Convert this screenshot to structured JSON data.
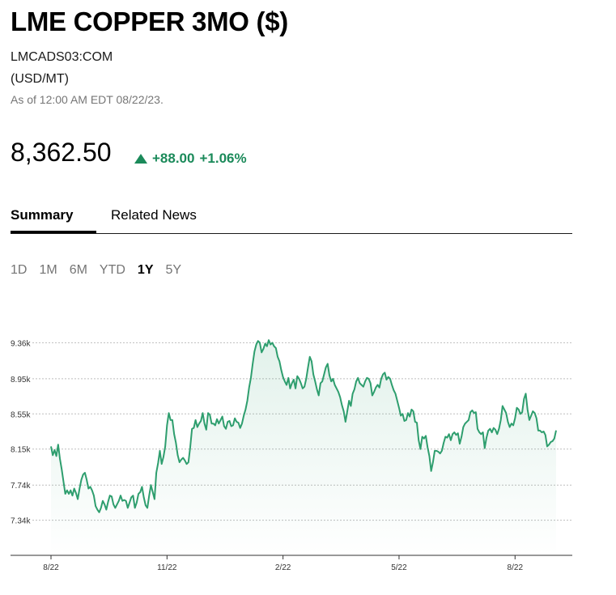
{
  "header": {
    "title": "LME COPPER 3MO ($)",
    "ticker": "LMCADS03:COM",
    "unit": "(USD/MT)",
    "as_of": "As of 12:00 AM EDT 08/22/23."
  },
  "quote": {
    "price": "8,362.50",
    "change": "+88.00",
    "change_pct": "+1.06%",
    "direction_icon": "triangle-up-icon",
    "positive_color": "#1b8a5a"
  },
  "tabs": [
    {
      "label": "Summary",
      "active": true
    },
    {
      "label": "Related News",
      "active": false
    }
  ],
  "ranges": [
    {
      "label": "1D",
      "active": false
    },
    {
      "label": "1M",
      "active": false
    },
    {
      "label": "6M",
      "active": false
    },
    {
      "label": "YTD",
      "active": false
    },
    {
      "label": "1Y",
      "active": true
    },
    {
      "label": "5Y",
      "active": false
    }
  ],
  "chart_data": {
    "type": "area",
    "title": "",
    "xlabel": "",
    "ylabel": "",
    "line_color": "#2e9e6e",
    "grid": true,
    "ylim": [
      6940,
      9760
    ],
    "y_ticks": [
      {
        "value": 9360,
        "label": "9.36k"
      },
      {
        "value": 8950,
        "label": "8.95k"
      },
      {
        "value": 8550,
        "label": "8.55k"
      },
      {
        "value": 8150,
        "label": "8.15k"
      },
      {
        "value": 7740,
        "label": "7.74k"
      },
      {
        "value": 7340,
        "label": "7.34k"
      }
    ],
    "x_ticks": [
      {
        "index": 0,
        "label": "8/22"
      },
      {
        "index": 65,
        "label": "11/22"
      },
      {
        "index": 130,
        "label": "2/22"
      },
      {
        "index": 195,
        "label": "5/22"
      },
      {
        "index": 260,
        "label": "8/22"
      }
    ],
    "series": [
      {
        "values": [
          8180,
          8080,
          8140,
          8070,
          8200,
          8040,
          7920,
          7780,
          7640,
          7680,
          7640,
          7680,
          7620,
          7700,
          7650,
          7580,
          7700,
          7800,
          7860,
          7880,
          7800,
          7700,
          7720,
          7680,
          7620,
          7500,
          7460,
          7430,
          7480,
          7560,
          7520,
          7460,
          7550,
          7620,
          7610,
          7520,
          7480,
          7520,
          7560,
          7620,
          7560,
          7570,
          7560,
          7480,
          7540,
          7600,
          7620,
          7480,
          7540,
          7640,
          7660,
          7720,
          7600,
          7510,
          7480,
          7620,
          7740,
          7660,
          7580,
          7880,
          7990,
          8130,
          7980,
          8060,
          8180,
          8420,
          8560,
          8480,
          8480,
          8320,
          8220,
          8080,
          8000,
          8030,
          8050,
          8020,
          7980,
          8000,
          8170,
          8380,
          8390,
          8480,
          8400,
          8440,
          8470,
          8560,
          8440,
          8370,
          8560,
          8540,
          8440,
          8440,
          8420,
          8490,
          8440,
          8480,
          8520,
          8410,
          8380,
          8460,
          8470,
          8410,
          8420,
          8500,
          8460,
          8450,
          8390,
          8440,
          8530,
          8600,
          8700,
          8850,
          8960,
          9120,
          9260,
          9340,
          9380,
          9360,
          9250,
          9290,
          9350,
          9320,
          9390,
          9340,
          9360,
          9320,
          9300,
          9200,
          9150,
          9050,
          8970,
          8920,
          8880,
          8960,
          8840,
          8900,
          8940,
          8840,
          8980,
          8950,
          8900,
          8840,
          8860,
          8950,
          9080,
          9200,
          9150,
          9000,
          8920,
          8830,
          8760,
          8900,
          8920,
          9000,
          9080,
          9120,
          8990,
          8920,
          8950,
          8880,
          8840,
          8800,
          8740,
          8650,
          8580,
          8460,
          8580,
          8700,
          8640,
          8780,
          8830,
          8920,
          8960,
          8900,
          8880,
          8860,
          8920,
          8960,
          8950,
          8900,
          8760,
          8800,
          8850,
          8880,
          8850,
          8950,
          9000,
          9020,
          8940,
          8970,
          8950,
          8880,
          8820,
          8780,
          8700,
          8620,
          8530,
          8550,
          8470,
          8480,
          8560,
          8520,
          8600,
          8580,
          8460,
          8450,
          8250,
          8150,
          8290,
          8270,
          8300,
          8170,
          8070,
          7900,
          8000,
          8130,
          8130,
          8120,
          8100,
          8130,
          8220,
          8290,
          8280,
          8320,
          8250,
          8320,
          8340,
          8310,
          8330,
          8210,
          8290,
          8400,
          8440,
          8460,
          8480,
          8570,
          8590,
          8560,
          8570,
          8380,
          8340,
          8320,
          8340,
          8160,
          8280,
          8360,
          8380,
          8340,
          8390,
          8370,
          8320,
          8380,
          8480,
          8640,
          8600,
          8560,
          8460,
          8400,
          8440,
          8420,
          8500,
          8620,
          8600,
          8550,
          8570,
          8720,
          8780,
          8600,
          8480,
          8530,
          8580,
          8560,
          8500,
          8360,
          8360,
          8340,
          8350,
          8310,
          8180,
          8200,
          8230,
          8240,
          8270,
          8362
        ]
      }
    ]
  }
}
